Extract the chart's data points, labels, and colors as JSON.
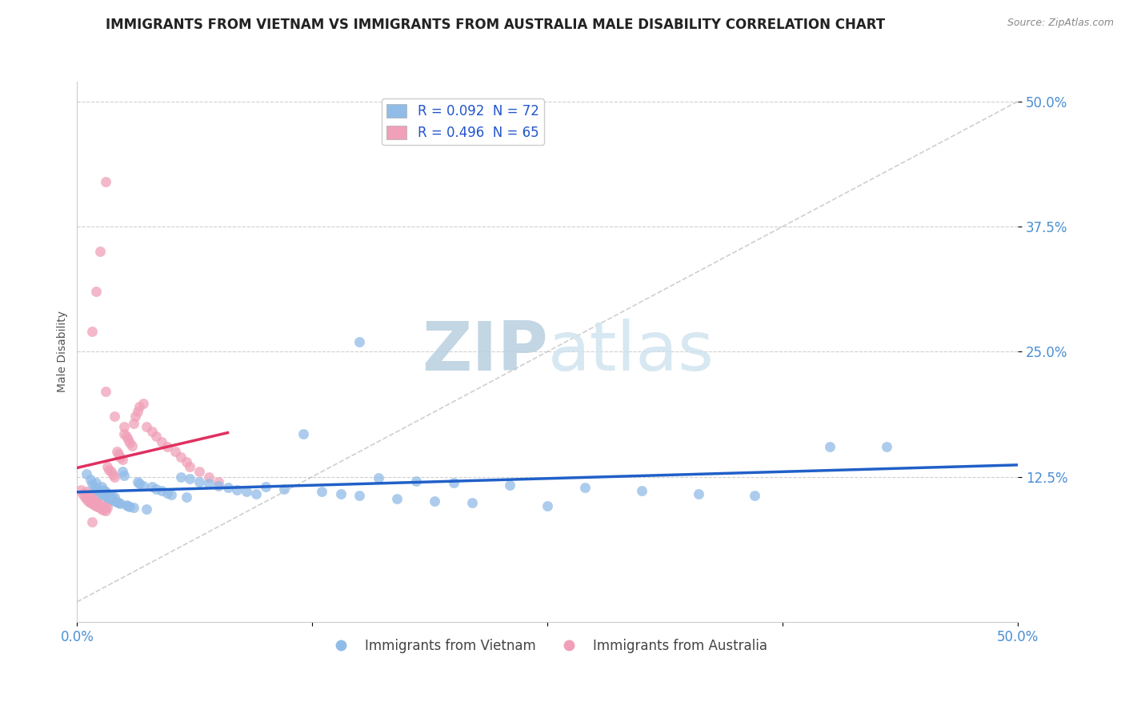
{
  "title": "IMMIGRANTS FROM VIETNAM VS IMMIGRANTS FROM AUSTRALIA MALE DISABILITY CORRELATION CHART",
  "source_text": "Source: ZipAtlas.com",
  "ylabel": "Male Disability",
  "xlim": [
    0.0,
    0.5
  ],
  "ylim": [
    -0.02,
    0.52
  ],
  "ytick_labels": [
    "12.5%",
    "25.0%",
    "37.5%",
    "50.0%"
  ],
  "ytick_vals": [
    0.125,
    0.25,
    0.375,
    0.5
  ],
  "grid_color": "#d0d0d0",
  "background_color": "#ffffff",
  "watermark_zip": "ZIP",
  "watermark_atlas": "atlas",
  "watermark_color": "#ccdaeb",
  "legend_blue_label": "R = 0.092  N = 72",
  "legend_pink_label": "R = 0.496  N = 65",
  "legend_label_vietnam": "Immigrants from Vietnam",
  "legend_label_australia": "Immigrants from Australia",
  "blue_color": "#92bce8",
  "pink_color": "#f0a0b8",
  "blue_line_color": "#2060c8",
  "pink_line_color": "#e03060",
  "title_fontsize": 12,
  "axis_label_fontsize": 10,
  "tick_fontsize": 12,
  "legend_fontsize": 12,
  "vietnam_x": [
    0.005,
    0.007,
    0.008,
    0.009,
    0.01,
    0.01,
    0.011,
    0.012,
    0.013,
    0.013,
    0.014,
    0.014,
    0.015,
    0.015,
    0.016,
    0.016,
    0.017,
    0.017,
    0.018,
    0.018,
    0.019,
    0.02,
    0.02,
    0.021,
    0.022,
    0.023,
    0.024,
    0.025,
    0.026,
    0.027,
    0.028,
    0.03,
    0.032,
    0.033,
    0.035,
    0.037,
    0.04,
    0.042,
    0.045,
    0.048,
    0.05,
    0.055,
    0.058,
    0.06,
    0.065,
    0.07,
    0.075,
    0.08,
    0.085,
    0.09,
    0.095,
    0.1,
    0.11,
    0.12,
    0.13,
    0.14,
    0.15,
    0.16,
    0.17,
    0.18,
    0.19,
    0.2,
    0.21,
    0.23,
    0.25,
    0.27,
    0.3,
    0.33,
    0.36,
    0.4,
    0.15,
    0.43
  ],
  "vietnam_y": [
    0.128,
    0.122,
    0.118,
    0.115,
    0.113,
    0.119,
    0.112,
    0.11,
    0.108,
    0.115,
    0.107,
    0.112,
    0.106,
    0.11,
    0.105,
    0.108,
    0.104,
    0.107,
    0.103,
    0.106,
    0.102,
    0.101,
    0.105,
    0.1,
    0.099,
    0.098,
    0.13,
    0.126,
    0.097,
    0.096,
    0.095,
    0.094,
    0.12,
    0.118,
    0.116,
    0.093,
    0.115,
    0.113,
    0.111,
    0.109,
    0.107,
    0.125,
    0.105,
    0.123,
    0.12,
    0.118,
    0.116,
    0.114,
    0.112,
    0.11,
    0.108,
    0.115,
    0.113,
    0.168,
    0.11,
    0.108,
    0.106,
    0.124,
    0.103,
    0.121,
    0.101,
    0.119,
    0.099,
    0.117,
    0.096,
    0.114,
    0.111,
    0.108,
    0.106,
    0.155,
    0.26,
    0.155
  ],
  "australia_x": [
    0.002,
    0.003,
    0.004,
    0.005,
    0.005,
    0.006,
    0.006,
    0.007,
    0.007,
    0.008,
    0.008,
    0.009,
    0.009,
    0.01,
    0.01,
    0.011,
    0.011,
    0.012,
    0.012,
    0.013,
    0.013,
    0.014,
    0.014,
    0.015,
    0.015,
    0.016,
    0.016,
    0.017,
    0.018,
    0.019,
    0.02,
    0.021,
    0.022,
    0.023,
    0.024,
    0.025,
    0.026,
    0.027,
    0.028,
    0.029,
    0.03,
    0.031,
    0.032,
    0.033,
    0.035,
    0.037,
    0.04,
    0.042,
    0.045,
    0.048,
    0.052,
    0.055,
    0.058,
    0.06,
    0.065,
    0.07,
    0.075,
    0.015,
    0.02,
    0.025,
    0.008,
    0.01,
    0.012,
    0.015,
    0.008
  ],
  "australia_y": [
    0.112,
    0.108,
    0.105,
    0.103,
    0.11,
    0.101,
    0.108,
    0.099,
    0.106,
    0.098,
    0.104,
    0.097,
    0.102,
    0.096,
    0.1,
    0.095,
    0.098,
    0.094,
    0.096,
    0.093,
    0.094,
    0.092,
    0.098,
    0.091,
    0.096,
    0.135,
    0.094,
    0.132,
    0.13,
    0.127,
    0.125,
    0.15,
    0.148,
    0.145,
    0.142,
    0.168,
    0.165,
    0.162,
    0.159,
    0.156,
    0.178,
    0.185,
    0.19,
    0.195,
    0.198,
    0.175,
    0.17,
    0.165,
    0.16,
    0.155,
    0.15,
    0.145,
    0.14,
    0.135,
    0.13,
    0.125,
    0.12,
    0.21,
    0.185,
    0.175,
    0.27,
    0.31,
    0.35,
    0.42,
    0.08
  ]
}
